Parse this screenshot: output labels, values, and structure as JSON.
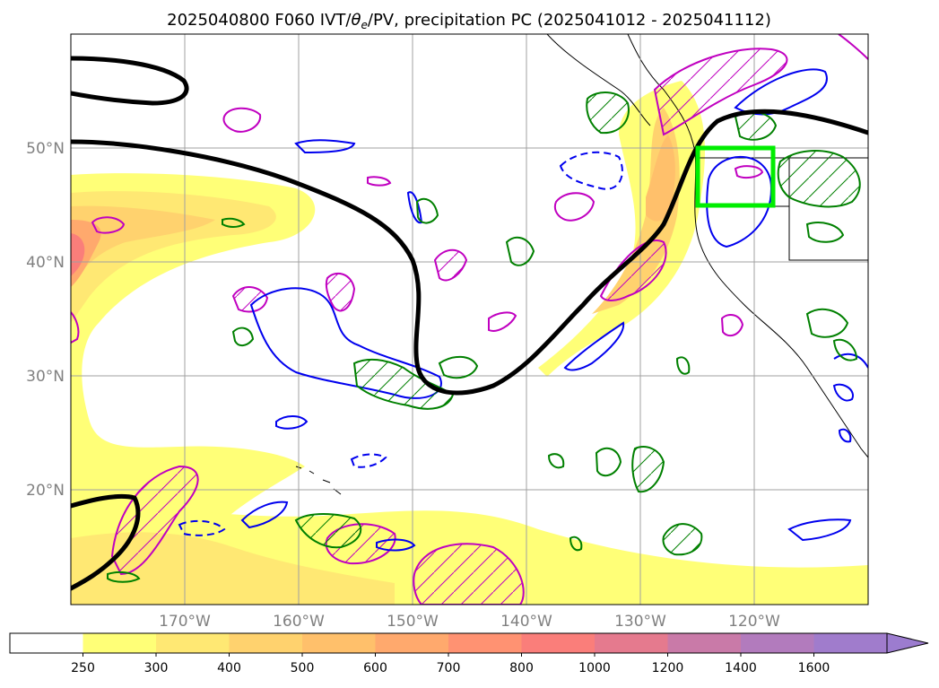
{
  "figure": {
    "title_main": "2025040800 F060 IVT/",
    "title_theta": "θ",
    "title_sub": "e",
    "title_rest": "/PV, precipitation PC (2025041012 - 2025041112)"
  },
  "map": {
    "lat_ticks": [
      {
        "value": 50,
        "label": "50°N"
      },
      {
        "value": 40,
        "label": "40°N"
      },
      {
        "value": 30,
        "label": "30°N"
      },
      {
        "value": 20,
        "label": "20°N"
      }
    ],
    "lon_ticks": [
      {
        "value": -170,
        "label": "170°W"
      },
      {
        "value": -160,
        "label": "160°W"
      },
      {
        "value": -150,
        "label": "150°W"
      },
      {
        "value": -140,
        "label": "140°W"
      },
      {
        "value": -130,
        "label": "130°W"
      },
      {
        "value": -120,
        "label": "120°W"
      }
    ],
    "extent": {
      "lon_min": -180,
      "lon_max": -110,
      "lat_min": 10,
      "lat_max": 60
    },
    "highlight_box": {
      "lon": [
        -125,
        -118.2
      ],
      "lat": [
        45,
        50
      ],
      "color": "#00ee00"
    },
    "pv_contour_color": "#000000",
    "theta_e_pos_color": "#008000",
    "theta_e_neg_color": "#0000ee",
    "precip_color": "#c000c0"
  },
  "colorbar": {
    "levels": [
      {
        "label": "250",
        "color": "#ffffff"
      },
      {
        "label": "300",
        "color": "#ffff77"
      },
      {
        "label": "400",
        "color": "#ffe873"
      },
      {
        "label": "500",
        "color": "#ffd26e"
      },
      {
        "label": "600",
        "color": "#ffc06b"
      },
      {
        "label": "700",
        "color": "#ffa96d"
      },
      {
        "label": "800",
        "color": "#ff9272"
      },
      {
        "label": "1000",
        "color": "#fa7e7a"
      },
      {
        "label": "1200",
        "color": "#e57a8e"
      },
      {
        "label": "1400",
        "color": "#c97aa8"
      },
      {
        "label": "1600",
        "color": "#b27bbd"
      },
      {
        "label": "",
        "color": "#a07ccc"
      }
    ],
    "extend_color": "#9c7ccf"
  }
}
